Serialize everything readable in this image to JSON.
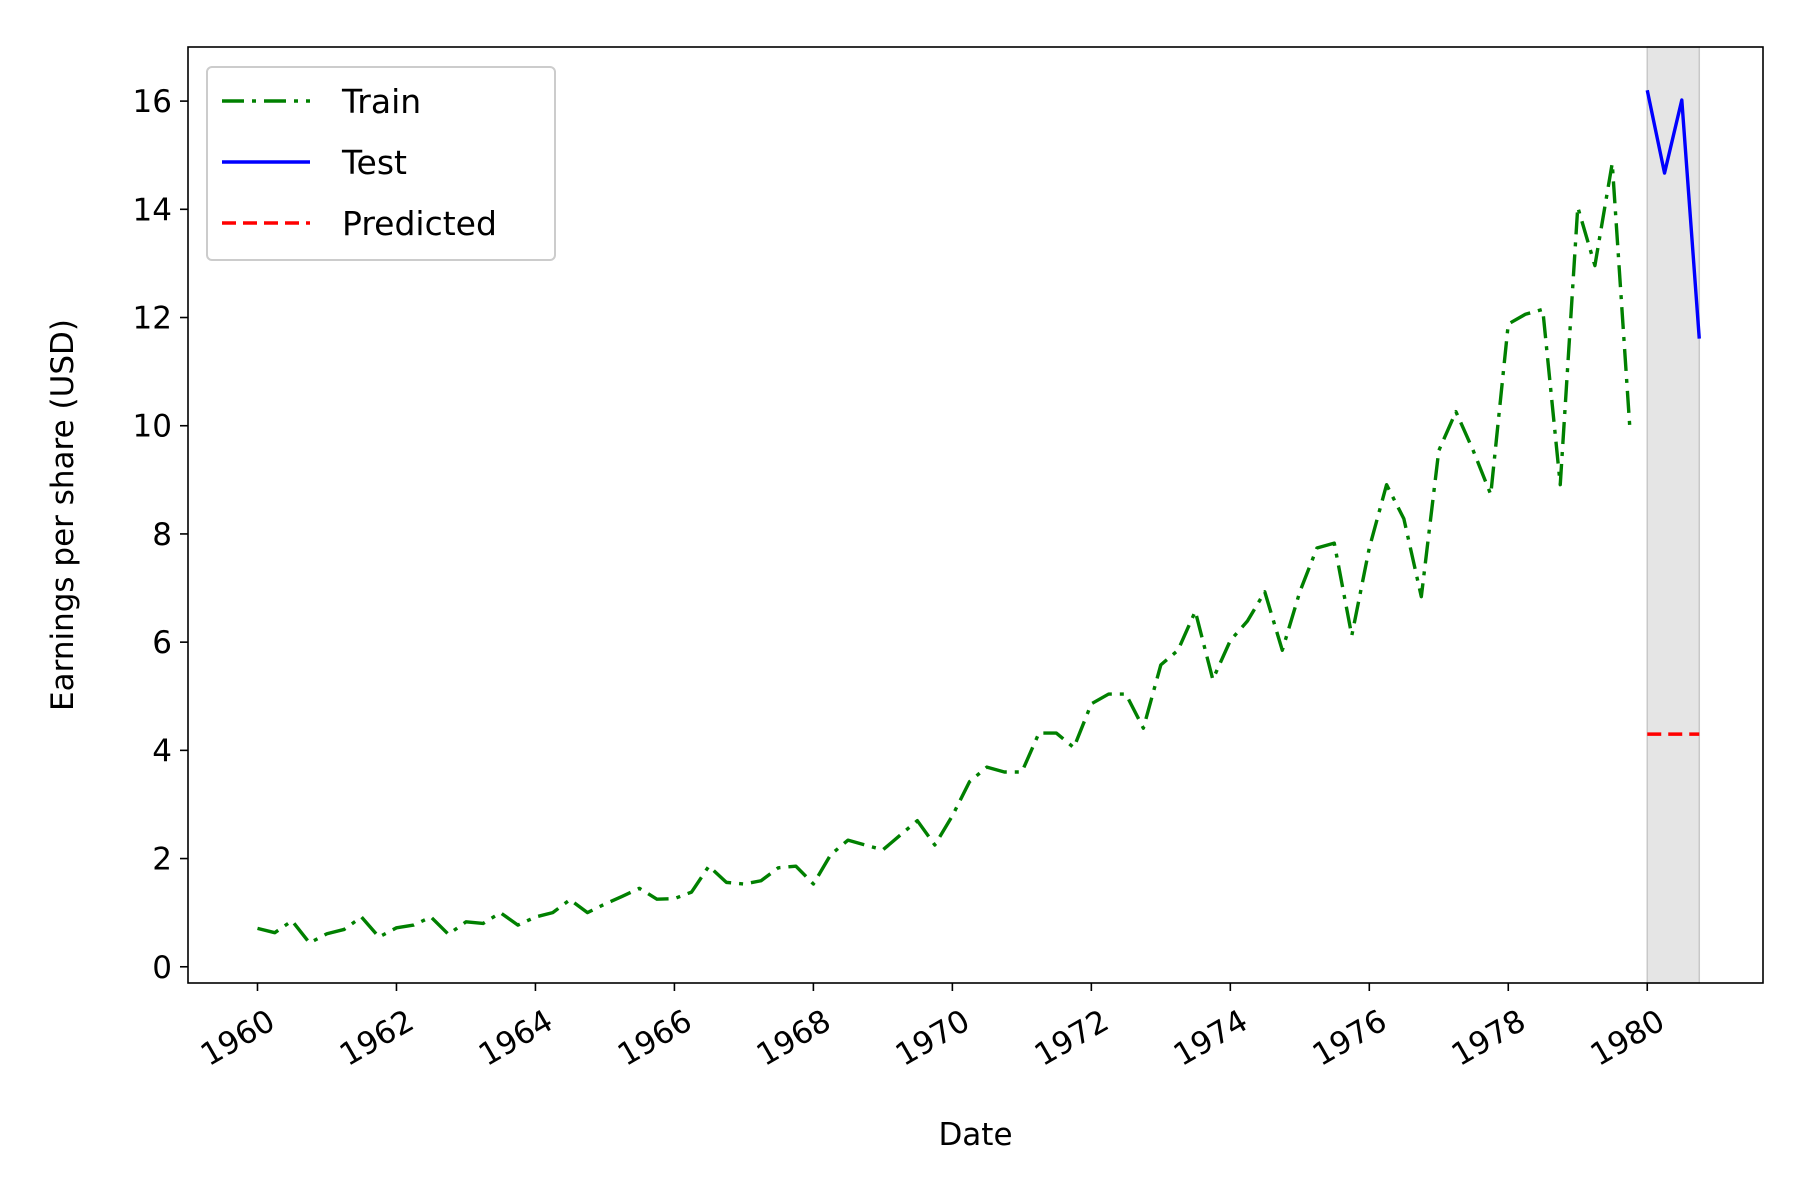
{
  "chart_data": {
    "type": "line",
    "title": "",
    "xlabel": "Date",
    "ylabel": "Earnings per share (USD)",
    "xlim": [
      "1959-01-01",
      "1981-09-01"
    ],
    "ylim": [
      -0.3,
      17
    ],
    "x_ticks": [
      "1960",
      "1962",
      "1964",
      "1966",
      "1968",
      "1970",
      "1972",
      "1974",
      "1976",
      "1978",
      "1980"
    ],
    "y_ticks": [
      "0",
      "2",
      "4",
      "6",
      "8",
      "10",
      "12",
      "14",
      "16"
    ],
    "grid": false,
    "legend_position": "upper-left",
    "shaded_region": {
      "start": "1980-01-01",
      "end": "1980-10-01",
      "color": "#e5e5e5"
    },
    "series": [
      {
        "name": "Train",
        "style": "dashdot",
        "color": "#008000",
        "x": [
          "1960-01-01",
          "1960-04-01",
          "1960-07-01",
          "1960-10-01",
          "1961-01-01",
          "1961-04-01",
          "1961-07-01",
          "1961-10-01",
          "1962-01-01",
          "1962-04-01",
          "1962-07-01",
          "1962-10-01",
          "1963-01-01",
          "1963-04-01",
          "1963-07-01",
          "1963-10-01",
          "1964-01-01",
          "1964-04-01",
          "1964-07-01",
          "1964-10-01",
          "1965-01-01",
          "1965-04-01",
          "1965-07-01",
          "1965-10-01",
          "1966-01-01",
          "1966-04-01",
          "1966-07-01",
          "1966-10-01",
          "1967-01-01",
          "1967-04-01",
          "1967-07-01",
          "1967-10-01",
          "1968-01-01",
          "1968-04-01",
          "1968-07-01",
          "1968-10-01",
          "1969-01-01",
          "1969-04-01",
          "1969-07-01",
          "1969-10-01",
          "1970-01-01",
          "1970-04-01",
          "1970-07-01",
          "1970-10-01",
          "1971-01-01",
          "1971-04-01",
          "1971-07-01",
          "1971-10-01",
          "1972-01-01",
          "1972-04-01",
          "1972-07-01",
          "1972-10-01",
          "1973-01-01",
          "1973-04-01",
          "1973-07-01",
          "1973-10-01",
          "1974-01-01",
          "1974-04-01",
          "1974-07-01",
          "1974-10-01",
          "1975-01-01",
          "1975-04-01",
          "1975-07-01",
          "1975-10-01",
          "1976-01-01",
          "1976-04-01",
          "1976-07-01",
          "1976-10-01",
          "1977-01-01",
          "1977-04-01",
          "1977-07-01",
          "1977-10-01",
          "1978-01-01",
          "1978-04-01",
          "1978-07-01",
          "1978-10-01",
          "1979-01-01",
          "1979-04-01",
          "1979-07-01",
          "1979-10-01"
        ],
        "y": [
          0.71,
          0.63,
          0.85,
          0.44,
          0.61,
          0.69,
          0.92,
          0.55,
          0.72,
          0.77,
          0.92,
          0.6,
          0.83,
          0.8,
          1.0,
          0.77,
          0.92,
          1.0,
          1.24,
          1.0,
          1.16,
          1.3,
          1.45,
          1.25,
          1.26,
          1.38,
          1.86,
          1.56,
          1.53,
          1.59,
          1.83,
          1.86,
          1.53,
          2.07,
          2.34,
          2.25,
          2.16,
          2.43,
          2.7,
          2.25,
          2.79,
          3.42,
          3.69,
          3.6,
          3.6,
          4.32,
          4.32,
          4.05,
          4.86,
          5.04,
          5.04,
          4.41,
          5.58,
          5.85,
          6.57,
          5.31,
          6.03,
          6.39,
          6.93,
          5.85,
          6.93,
          7.74,
          7.83,
          6.12,
          7.74,
          8.91,
          8.28,
          6.84,
          9.54,
          10.26,
          9.54,
          8.73,
          11.88,
          12.06,
          12.15,
          8.91,
          14.04,
          12.96,
          14.85,
          9.99
        ]
      },
      {
        "name": "Test",
        "style": "solid",
        "color": "#0000ff",
        "x": [
          "1980-01-01",
          "1980-04-01",
          "1980-07-01",
          "1980-10-01"
        ],
        "y": [
          16.2,
          14.67,
          16.02,
          11.61
        ]
      },
      {
        "name": "Predicted",
        "style": "dashed",
        "color": "#ff0000",
        "x": [
          "1980-01-01",
          "1980-04-01",
          "1980-07-01",
          "1980-10-01"
        ],
        "y": [
          4.3,
          4.3,
          4.3,
          4.3
        ]
      }
    ]
  }
}
